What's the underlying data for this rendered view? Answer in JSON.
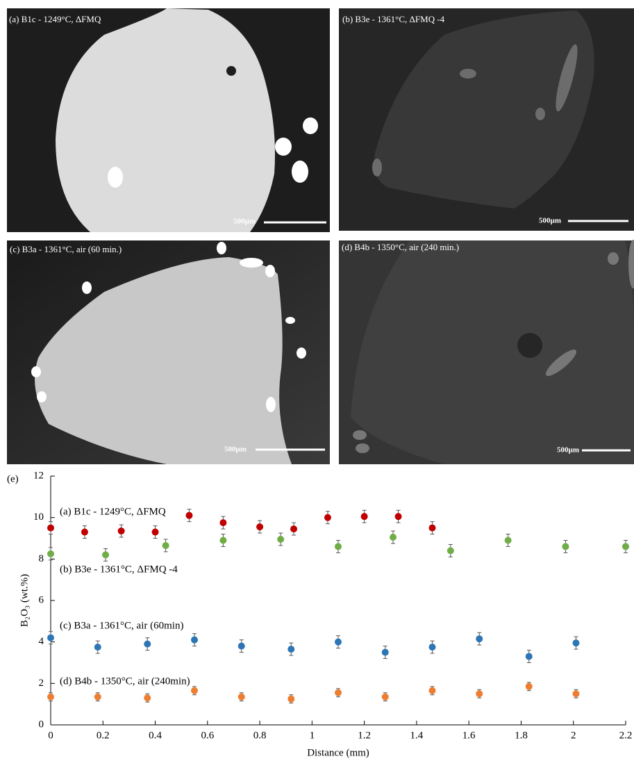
{
  "images": [
    {
      "label": "(a) B1c - 1249°C, ΔFMQ",
      "scale_label": "500µm"
    },
    {
      "label": "(b) B3e - 1361°C, ΔFMQ -4",
      "scale_label": "500µm"
    },
    {
      "label": "(c) B3a - 1361°C, air (60 min.)",
      "scale_label": "500µm"
    },
    {
      "label": "(d) B4b - 1350°C, air (240 min.)",
      "scale_label": "500µm"
    }
  ],
  "chart_data": {
    "type": "scatter",
    "panel_label": "(e)",
    "x_label": "Distance (mm)",
    "y_label": "B₂O₃ (wt.%)",
    "xlim": [
      0,
      2.2
    ],
    "xticks": [
      0,
      0.2,
      0.4,
      0.6,
      0.8,
      1,
      1.2,
      1.4,
      1.6,
      1.8,
      2,
      2.2
    ],
    "ylim": [
      0,
      12
    ],
    "yticks": [
      0,
      2,
      4,
      6,
      8,
      10,
      12
    ],
    "series": [
      {
        "name": "(a) B1c - 1249°C, ΔFMQ",
        "color": "#c00000",
        "x": [
          0,
          0.13,
          0.27,
          0.4,
          0.53,
          0.66,
          0.8,
          0.93,
          1.06,
          1.2,
          1.33,
          1.46
        ],
        "values": [
          9.5,
          9.3,
          9.35,
          9.3,
          10.1,
          9.75,
          9.55,
          9.45,
          10.0,
          10.05,
          10.05,
          9.5
        ],
        "errors": [
          0.3,
          0.3,
          0.3,
          0.3,
          0.3,
          0.3,
          0.3,
          0.3,
          0.3,
          0.3,
          0.3,
          0.3
        ]
      },
      {
        "name": "(b) B3e - 1361°C, ΔFMQ -4",
        "color": "#70ad47",
        "x": [
          0,
          0.21,
          0.44,
          0.66,
          0.88,
          1.1,
          1.31,
          1.53,
          1.75,
          1.97,
          2.2
        ],
        "values": [
          8.25,
          8.2,
          8.65,
          8.9,
          8.95,
          8.6,
          9.05,
          8.4,
          8.9,
          8.6,
          8.6
        ],
        "errors": [
          0.3,
          0.3,
          0.3,
          0.3,
          0.3,
          0.3,
          0.3,
          0.3,
          0.3,
          0.3,
          0.3
        ]
      },
      {
        "name": "(c) B3a - 1361°C, air (60min)",
        "color": "#2e75b6",
        "x": [
          0,
          0.18,
          0.37,
          0.55,
          0.73,
          0.92,
          1.1,
          1.28,
          1.46,
          1.64,
          1.83,
          2.01
        ],
        "values": [
          4.2,
          3.75,
          3.9,
          4.1,
          3.8,
          3.65,
          4.0,
          3.5,
          3.75,
          4.15,
          3.3,
          3.95
        ],
        "errors": [
          0.3,
          0.3,
          0.3,
          0.3,
          0.3,
          0.3,
          0.3,
          0.3,
          0.3,
          0.3,
          0.3,
          0.3
        ]
      },
      {
        "name": "(d) B4b - 1350°C, air (240min)",
        "color": "#ed7d31",
        "x": [
          0,
          0.18,
          0.37,
          0.55,
          0.73,
          0.92,
          1.1,
          1.28,
          1.46,
          1.64,
          1.83,
          2.01
        ],
        "values": [
          1.35,
          1.35,
          1.3,
          1.65,
          1.35,
          1.25,
          1.55,
          1.35,
          1.65,
          1.5,
          1.85,
          1.5
        ],
        "errors": [
          0.2,
          0.2,
          0.2,
          0.2,
          0.2,
          0.2,
          0.2,
          0.2,
          0.2,
          0.2,
          0.2,
          0.2
        ]
      }
    ]
  }
}
